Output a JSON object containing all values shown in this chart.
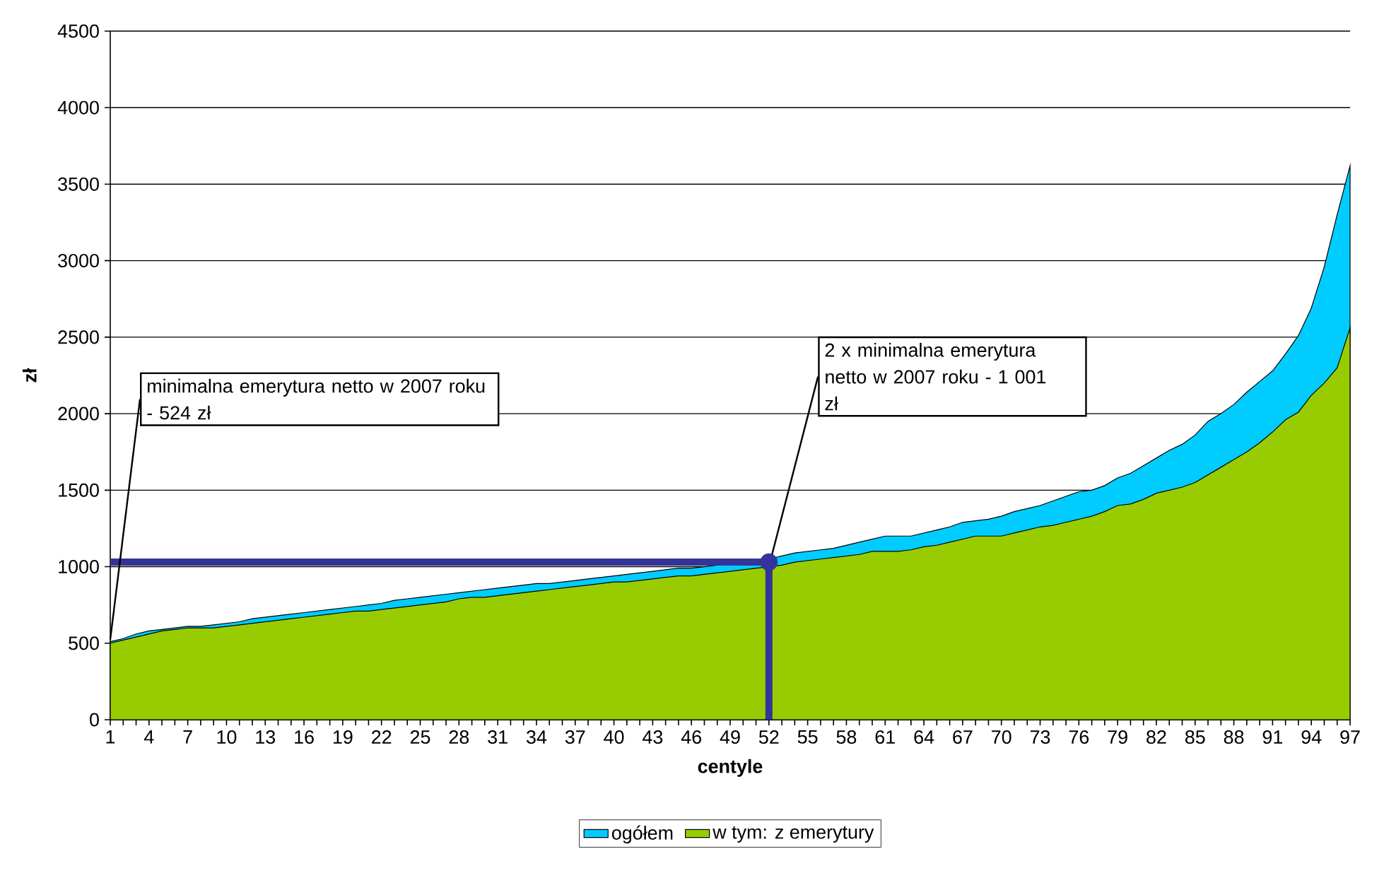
{
  "chart_data": {
    "type": "area",
    "xlabel": "centyle",
    "ylabel": "zł",
    "categories": [
      "1",
      null,
      null,
      "4",
      null,
      null,
      "7",
      null,
      null,
      "10",
      null,
      null,
      "13",
      null,
      null,
      "16",
      null,
      null,
      "19",
      null,
      null,
      "22",
      null,
      null,
      "25",
      null,
      null,
      "28",
      null,
      null,
      "31",
      null,
      null,
      "34",
      null,
      null,
      "37",
      null,
      null,
      "40",
      null,
      null,
      "43",
      null,
      null,
      "46",
      null,
      null,
      "49",
      null,
      null,
      "52",
      null,
      null,
      "55",
      null,
      null,
      "58",
      null,
      null,
      "61",
      null,
      null,
      "64",
      null,
      null,
      "67",
      null,
      null,
      "70",
      null,
      null,
      "73",
      null,
      null,
      "76",
      null,
      null,
      "79",
      null,
      null,
      "82",
      null,
      null,
      "85",
      null,
      null,
      "88",
      null,
      null,
      "91",
      null,
      null,
      "94",
      null,
      null,
      "97"
    ],
    "series": [
      {
        "name": "ogółem",
        "color": "#00ccff",
        "values": [
          510,
          530,
          560,
          580,
          590,
          600,
          610,
          610,
          620,
          630,
          640,
          660,
          670,
          680,
          690,
          700,
          710,
          720,
          730,
          740,
          750,
          760,
          780,
          790,
          800,
          810,
          820,
          830,
          840,
          850,
          860,
          870,
          880,
          890,
          890,
          900,
          910,
          920,
          930,
          940,
          950,
          960,
          970,
          980,
          990,
          990,
          1000,
          1010,
          1020,
          1030,
          1040,
          1050,
          1070,
          1090,
          1100,
          1110,
          1120,
          1140,
          1160,
          1180,
          1200,
          1200,
          1200,
          1220,
          1240,
          1260,
          1290,
          1300,
          1310,
          1330,
          1360,
          1380,
          1400,
          1430,
          1460,
          1490,
          1500,
          1530,
          1580,
          1610,
          1660,
          1710,
          1760,
          1800,
          1860,
          1950,
          2000,
          2060,
          2140,
          2210,
          2280,
          2390,
          2510,
          2690,
          2960,
          3300,
          3620
        ]
      },
      {
        "name": "w tym: z emerytury",
        "color": "#99cc00",
        "values": [
          500,
          520,
          540,
          560,
          580,
          590,
          600,
          600,
          600,
          610,
          620,
          630,
          640,
          650,
          660,
          670,
          680,
          690,
          700,
          710,
          710,
          720,
          730,
          740,
          750,
          760,
          770,
          790,
          800,
          800,
          810,
          820,
          830,
          840,
          850,
          860,
          870,
          880,
          890,
          900,
          900,
          910,
          920,
          930,
          940,
          940,
          950,
          960,
          970,
          980,
          990,
          1000,
          1010,
          1030,
          1040,
          1050,
          1060,
          1070,
          1080,
          1100,
          1100,
          1100,
          1110,
          1130,
          1140,
          1160,
          1180,
          1200,
          1200,
          1200,
          1220,
          1240,
          1260,
          1270,
          1290,
          1310,
          1330,
          1360,
          1400,
          1410,
          1440,
          1480,
          1500,
          1520,
          1550,
          1600,
          1650,
          1700,
          1750,
          1810,
          1880,
          1960,
          2010,
          2120,
          2200,
          2300,
          2560
        ]
      },
      {
        "type": "line",
        "color": "#333399",
        "x": [
          "1",
          "52",
          "52"
        ],
        "values": [
          1030,
          1030,
          0
        ]
      },
      {
        "type": "scatter",
        "color": "#333399",
        "x": [
          "52"
        ],
        "values": [
          1030
        ]
      }
    ],
    "ylim": [
      0,
      4500
    ],
    "yticks": [
      0,
      500,
      1000,
      1500,
      2000,
      2500,
      3000,
      3500,
      4000,
      4500
    ],
    "grid": "y",
    "legend": "bottom",
    "annotations": [
      {
        "text": "minimalna emerytura netto w 2007 roku - 524 zł",
        "x": "1",
        "y": 524
      },
      {
        "text": "2 x minimalna emerytura netto w 2007 roku - 1 001 zł",
        "x": "52",
        "y": 1001
      }
    ]
  }
}
